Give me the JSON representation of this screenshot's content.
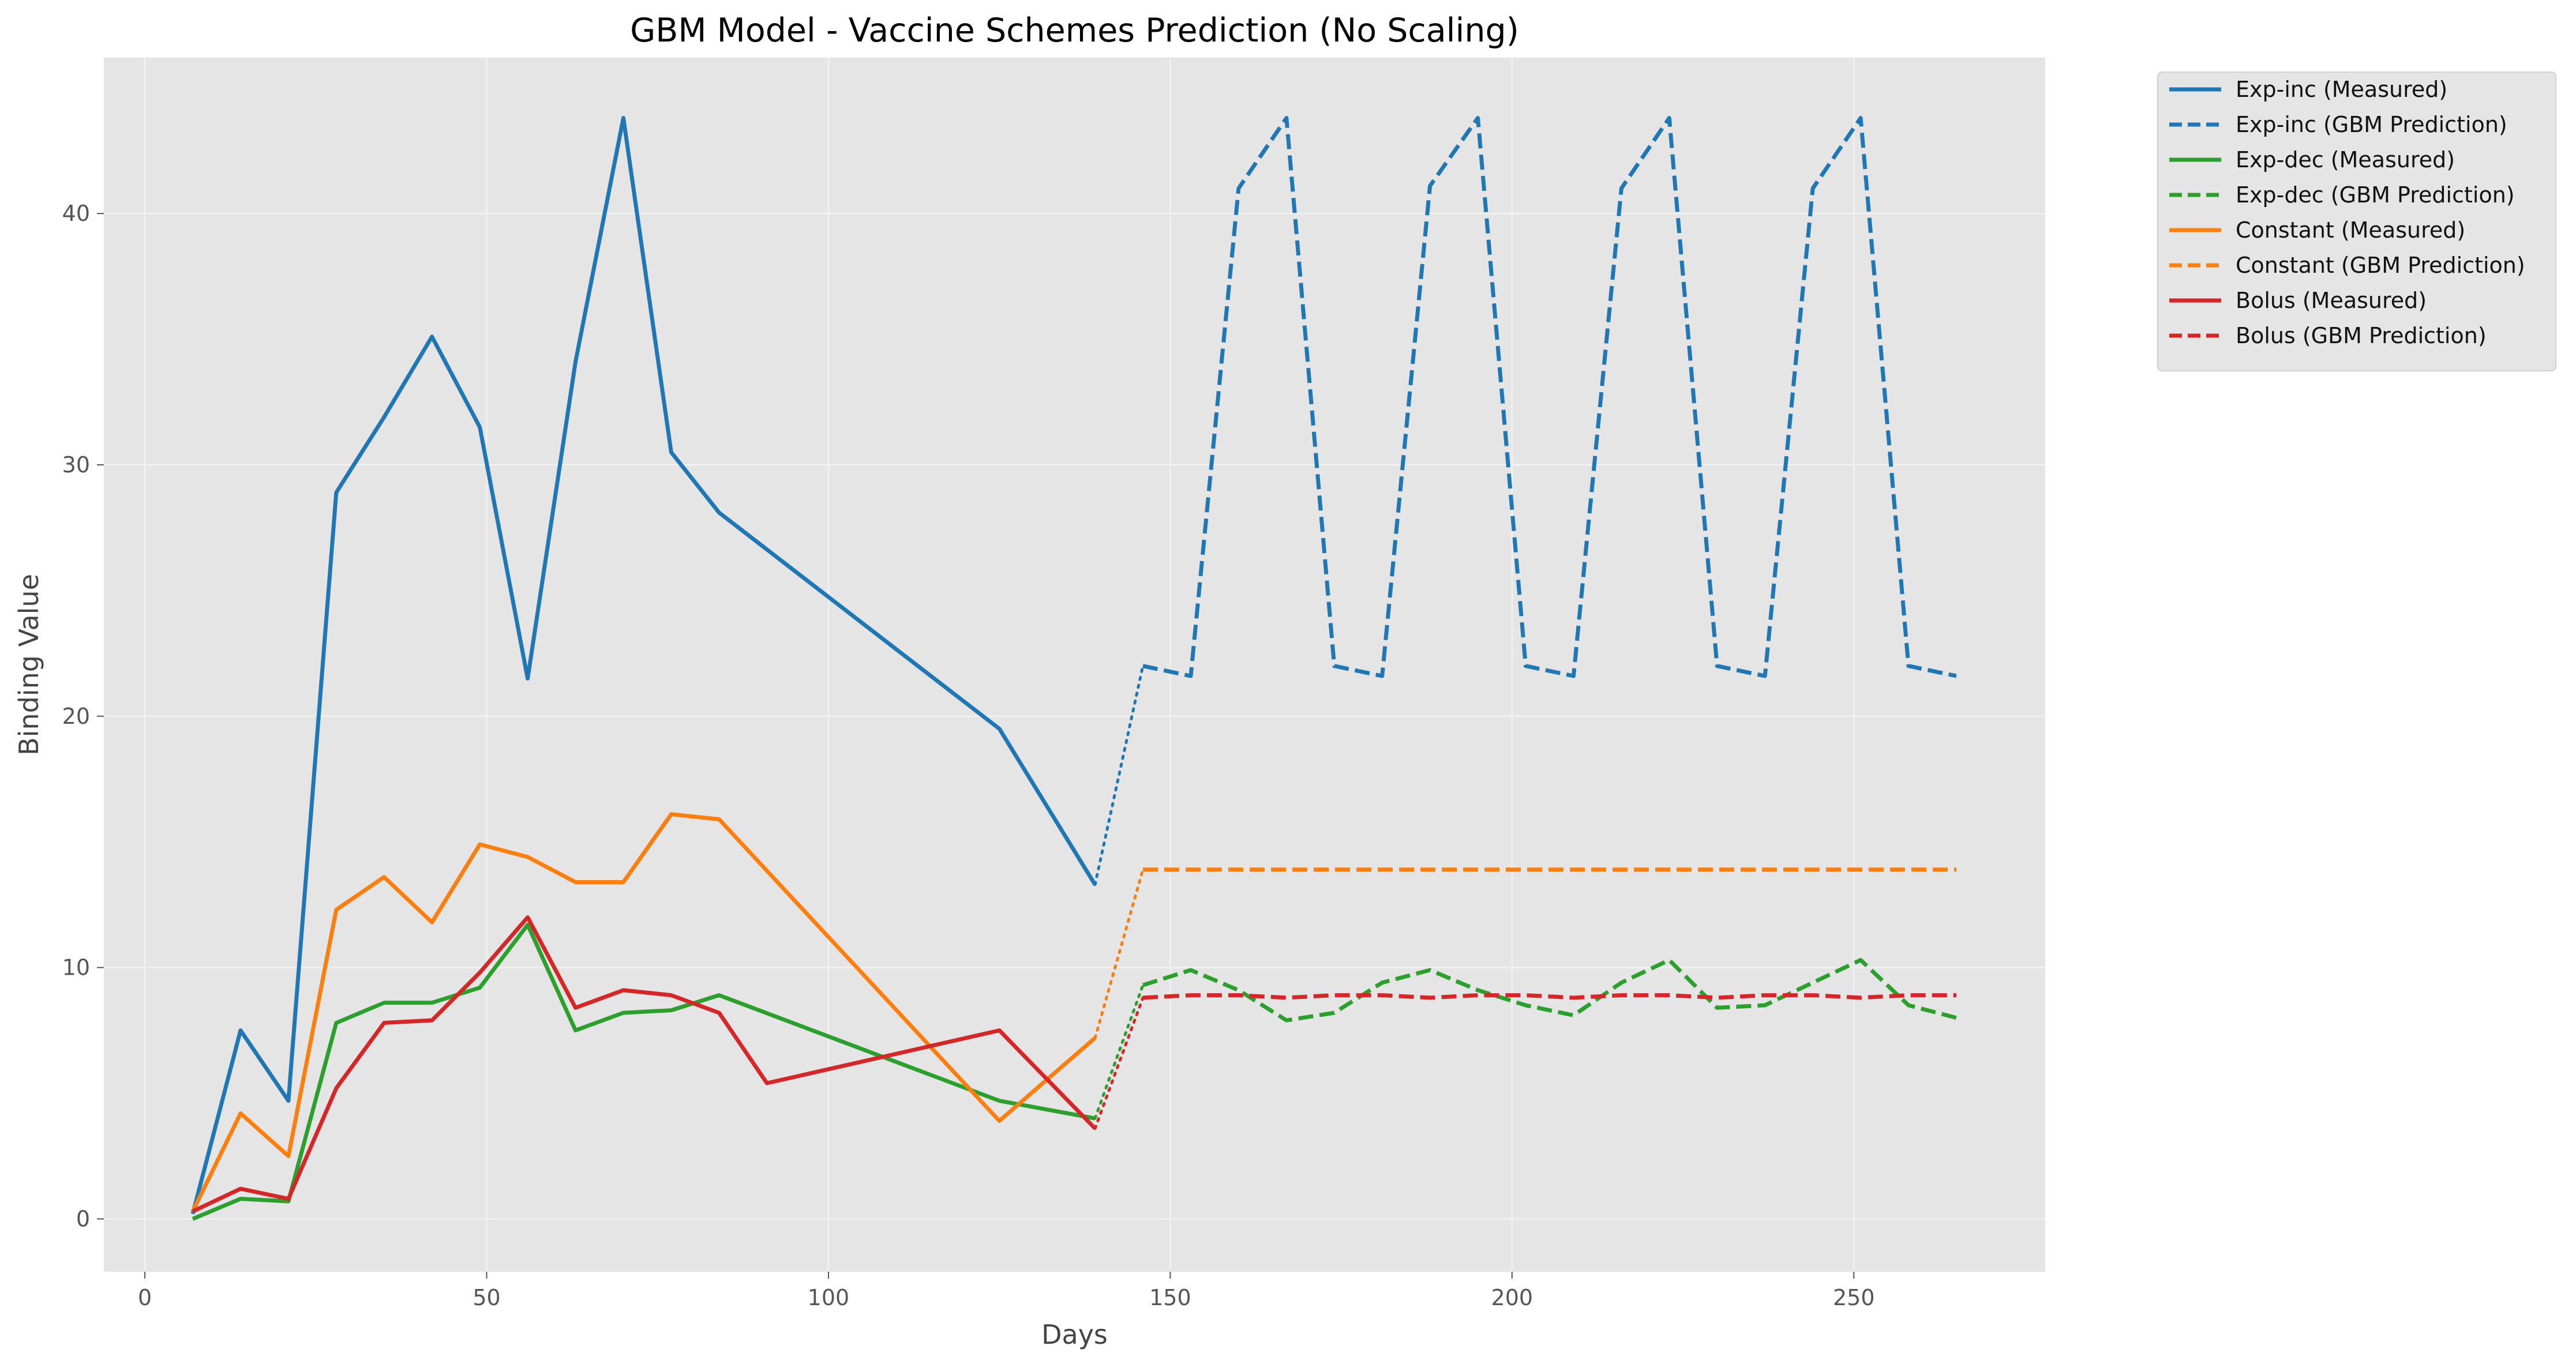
{
  "chart_data": {
    "type": "line",
    "title": "GBM Model - Vaccine Schemes Prediction (No Scaling)",
    "xlabel": "Days",
    "ylabel": "Binding Value",
    "xlim": [
      -6,
      278
    ],
    "ylim": [
      -2.1,
      46.2
    ],
    "xticks": [
      0,
      50,
      100,
      150,
      200,
      250
    ],
    "yticks": [
      0,
      10,
      20,
      30,
      40
    ],
    "grid": true,
    "legend_position": "outside-top-right",
    "series": [
      {
        "name": "Exp-inc (Measured)",
        "color": "#1f77b4",
        "style": "solid",
        "x": [
          7,
          14,
          21,
          28,
          35,
          42,
          49,
          56,
          63,
          70,
          77,
          84,
          125,
          139
        ],
        "y": [
          0.2,
          7.5,
          4.7,
          28.9,
          31.9,
          35.1,
          31.5,
          21.5,
          34.1,
          43.8,
          30.5,
          28.1,
          19.5,
          13.3
        ]
      },
      {
        "name": "Exp-inc (GBM Prediction)",
        "color": "#1f77b4",
        "style": "dashed",
        "x": [
          146,
          153,
          160,
          167,
          174,
          181,
          188,
          195,
          202,
          209,
          216,
          223,
          230,
          237,
          244,
          251,
          258,
          265
        ],
        "y": [
          22.0,
          21.6,
          41.0,
          43.8,
          22.0,
          21.6,
          41.1,
          43.8,
          22.0,
          21.6,
          41.0,
          43.8,
          22.0,
          21.6,
          41.0,
          43.8,
          22.0,
          21.6
        ]
      },
      {
        "name": "Exp-dec (Measured)",
        "color": "#2ca02c",
        "style": "solid",
        "x": [
          7,
          14,
          21,
          28,
          35,
          42,
          49,
          56,
          63,
          70,
          77,
          84,
          125,
          139
        ],
        "y": [
          0.0,
          0.8,
          0.7,
          7.8,
          8.6,
          8.6,
          9.2,
          11.7,
          7.5,
          8.2,
          8.3,
          8.9,
          4.7,
          4.0
        ]
      },
      {
        "name": "Exp-dec (GBM Prediction)",
        "color": "#2ca02c",
        "style": "dashed",
        "x": [
          146,
          153,
          160,
          167,
          174,
          181,
          188,
          195,
          202,
          209,
          216,
          223,
          230,
          237,
          244,
          251,
          258,
          265
        ],
        "y": [
          9.3,
          9.9,
          9.1,
          7.9,
          8.2,
          9.4,
          9.9,
          9.1,
          8.5,
          8.1,
          9.4,
          10.3,
          8.4,
          8.5,
          9.4,
          10.3,
          8.5,
          8.0
        ]
      },
      {
        "name": "Constant (Measured)",
        "color": "#ff7f0e",
        "style": "solid",
        "x": [
          7,
          14,
          21,
          28,
          35,
          42,
          49,
          56,
          63,
          70,
          77,
          84,
          125,
          139
        ],
        "y": [
          0.3,
          4.2,
          2.5,
          12.3,
          13.6,
          11.8,
          14.9,
          14.4,
          13.4,
          13.4,
          16.1,
          15.9,
          3.9,
          7.2
        ]
      },
      {
        "name": "Constant (GBM Prediction)",
        "color": "#ff7f0e",
        "style": "dashed",
        "x": [
          146,
          153,
          160,
          167,
          174,
          181,
          188,
          195,
          202,
          209,
          216,
          223,
          230,
          237,
          244,
          251,
          258,
          265
        ],
        "y": [
          13.9,
          13.9,
          13.9,
          13.9,
          13.9,
          13.9,
          13.9,
          13.9,
          13.9,
          13.9,
          13.9,
          13.9,
          13.9,
          13.9,
          13.9,
          13.9,
          13.9,
          13.9
        ]
      },
      {
        "name": "Bolus (Measured)",
        "color": "#d62728",
        "style": "solid",
        "x": [
          7,
          14,
          21,
          28,
          35,
          42,
          49,
          56,
          63,
          70,
          77,
          84,
          91,
          125,
          139
        ],
        "y": [
          0.3,
          1.2,
          0.8,
          5.2,
          7.8,
          7.9,
          9.8,
          12.0,
          8.4,
          9.1,
          8.9,
          8.2,
          5.4,
          7.5,
          3.6
        ]
      },
      {
        "name": "Bolus (GBM Prediction)",
        "color": "#d62728",
        "style": "dashed",
        "x": [
          146,
          153,
          160,
          167,
          174,
          181,
          188,
          195,
          202,
          209,
          216,
          223,
          230,
          237,
          244,
          251,
          258,
          265
        ],
        "y": [
          8.8,
          8.9,
          8.9,
          8.8,
          8.9,
          8.9,
          8.8,
          8.9,
          8.9,
          8.8,
          8.9,
          8.9,
          8.8,
          8.9,
          8.9,
          8.8,
          8.9,
          8.9
        ]
      }
    ]
  }
}
